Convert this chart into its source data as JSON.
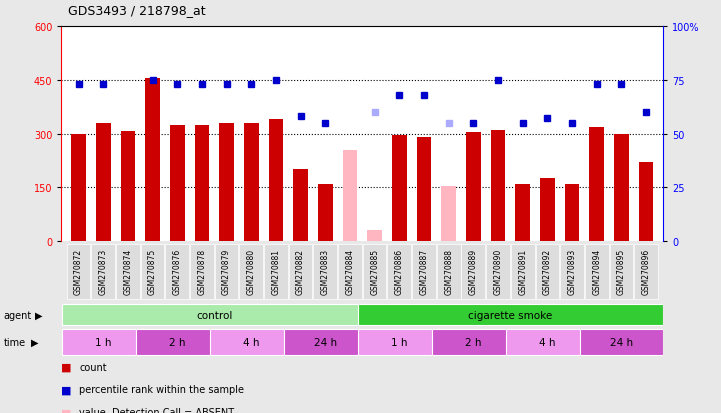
{
  "title": "GDS3493 / 218798_at",
  "samples": [
    "GSM270872",
    "GSM270873",
    "GSM270874",
    "GSM270875",
    "GSM270876",
    "GSM270878",
    "GSM270879",
    "GSM270880",
    "GSM270881",
    "GSM270882",
    "GSM270883",
    "GSM270884",
    "GSM270885",
    "GSM270886",
    "GSM270887",
    "GSM270888",
    "GSM270889",
    "GSM270890",
    "GSM270891",
    "GSM270892",
    "GSM270893",
    "GSM270894",
    "GSM270895",
    "GSM270896"
  ],
  "counts": [
    300,
    330,
    308,
    455,
    325,
    325,
    330,
    330,
    340,
    200,
    160,
    null,
    30,
    295,
    290,
    null,
    305,
    310,
    160,
    175,
    160,
    318,
    300,
    220
  ],
  "counts_absent": [
    null,
    null,
    null,
    null,
    null,
    null,
    null,
    null,
    null,
    null,
    null,
    255,
    null,
    null,
    null,
    155,
    null,
    null,
    null,
    null,
    null,
    null,
    null,
    null
  ],
  "percentile_ranks": [
    73,
    73,
    null,
    75,
    73,
    73,
    73,
    73,
    75,
    58,
    55,
    null,
    null,
    68,
    68,
    null,
    55,
    75,
    55,
    57,
    55,
    73,
    73,
    60
  ],
  "percentile_ranks_absent": [
    null,
    null,
    null,
    null,
    null,
    null,
    null,
    null,
    null,
    null,
    null,
    null,
    60,
    null,
    null,
    55,
    null,
    null,
    null,
    null,
    null,
    null,
    null,
    null
  ],
  "absent_flags": [
    false,
    false,
    false,
    false,
    false,
    false,
    false,
    false,
    false,
    false,
    false,
    true,
    true,
    false,
    false,
    true,
    false,
    false,
    false,
    false,
    false,
    false,
    false,
    false
  ],
  "ylim_left": [
    0,
    600
  ],
  "ylim_right": [
    0,
    100
  ],
  "yticks_left": [
    0,
    150,
    300,
    450,
    600
  ],
  "yticks_right": [
    0,
    25,
    50,
    75,
    100
  ],
  "bar_color": "#CC0000",
  "bar_color_absent": "#FFB6C1",
  "rank_color": "#0000CC",
  "rank_color_absent": "#AAAAFF",
  "agent_groups": [
    {
      "label": "control",
      "start": 0,
      "end": 12,
      "color": "#AAEAAA"
    },
    {
      "label": "cigarette smoke",
      "start": 12,
      "end": 24,
      "color": "#33CC33"
    }
  ],
  "time_groups": [
    {
      "label": "1 h",
      "start": 0,
      "end": 3,
      "color": "#EE99EE"
    },
    {
      "label": "2 h",
      "start": 3,
      "end": 6,
      "color": "#CC55CC"
    },
    {
      "label": "4 h",
      "start": 6,
      "end": 9,
      "color": "#EE99EE"
    },
    {
      "label": "24 h",
      "start": 9,
      "end": 12,
      "color": "#CC55CC"
    },
    {
      "label": "1 h",
      "start": 12,
      "end": 15,
      "color": "#EE99EE"
    },
    {
      "label": "2 h",
      "start": 15,
      "end": 18,
      "color": "#CC55CC"
    },
    {
      "label": "4 h",
      "start": 18,
      "end": 21,
      "color": "#EE99EE"
    },
    {
      "label": "24 h",
      "start": 21,
      "end": 24,
      "color": "#CC55CC"
    }
  ],
  "bg_color": "#E8E8E8",
  "plot_bg": "#FFFFFF",
  "sample_bg": "#DDDDDD"
}
